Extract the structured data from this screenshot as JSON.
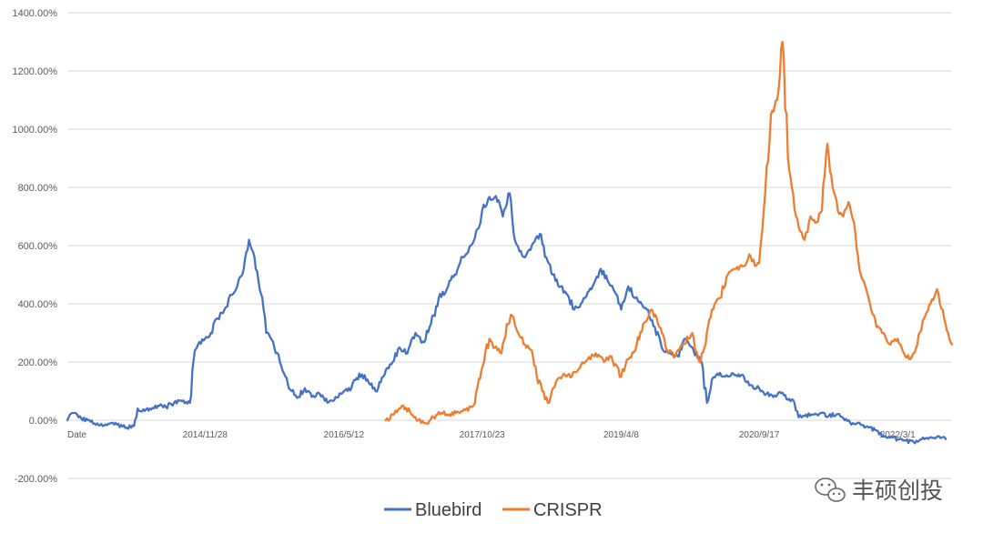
{
  "chart_data": {
    "type": "line",
    "title": "",
    "xlabel": "",
    "ylabel": "",
    "ylim": [
      -200,
      1400
    ],
    "y_ticks": [
      "-200.00%",
      "0.00%",
      "200.00%",
      "400.00%",
      "600.00%",
      "800.00%",
      "1000.00%",
      "1200.00%",
      "1400.00%"
    ],
    "x_tick_labels": [
      "Date",
      "2014/11/28",
      "2016/5/12",
      "2017/10/23",
      "2019/4/8",
      "2020/9/17",
      "2022/3/1"
    ],
    "x_tick_dates": [
      "2013-06-19",
      "2014-11-28",
      "2016-05-12",
      "2017-10-23",
      "2019-04-08",
      "2020-09-17",
      "2022-03-01"
    ],
    "grid": true,
    "legend_position": "bottom",
    "series": [
      {
        "name": "Bluebird",
        "color": "#4472C4",
        "x": [
          "2013-06-19",
          "2013-07-10",
          "2013-08-01",
          "2013-09-15",
          "2013-11-01",
          "2013-12-15",
          "2014-02-01",
          "2014-03-01",
          "2014-03-15",
          "2014-04-01",
          "2014-05-01",
          "2014-06-01",
          "2014-07-01",
          "2014-08-01",
          "2014-09-01",
          "2014-10-01",
          "2014-10-20",
          "2014-11-01",
          "2014-11-28",
          "2014-12-20",
          "2015-01-15",
          "2015-02-10",
          "2015-03-10",
          "2015-04-05",
          "2015-04-25",
          "2015-05-15",
          "2015-06-05",
          "2015-06-20",
          "2015-07-05",
          "2015-07-20",
          "2015-08-15",
          "2015-09-10",
          "2015-10-01",
          "2015-10-25",
          "2015-11-20",
          "2015-12-15",
          "2016-01-10",
          "2016-02-10",
          "2016-03-10",
          "2016-04-10",
          "2016-05-12",
          "2016-06-10",
          "2016-07-10",
          "2016-08-10",
          "2016-09-10",
          "2016-10-10",
          "2016-10-25",
          "2016-11-15",
          "2016-12-10",
          "2017-01-10",
          "2017-02-10",
          "2017-03-10",
          "2017-04-10",
          "2017-05-10",
          "2017-06-10",
          "2017-07-10",
          "2017-08-10",
          "2017-09-10",
          "2017-10-10",
          "2017-10-23",
          "2017-11-15",
          "2017-12-15",
          "2018-01-10",
          "2018-02-05",
          "2018-02-25",
          "2018-03-15",
          "2018-04-05",
          "2018-05-01",
          "2018-06-01",
          "2018-06-25",
          "2018-07-20",
          "2018-08-20",
          "2018-09-15",
          "2018-10-10",
          "2018-11-05",
          "2018-12-01",
          "2018-12-25",
          "2019-01-20",
          "2019-02-15",
          "2019-03-15",
          "2019-04-08",
          "2019-05-05",
          "2019-06-01",
          "2019-06-25",
          "2019-07-20",
          "2019-08-15",
          "2019-09-10",
          "2019-10-10",
          "2019-11-10",
          "2019-12-10",
          "2020-01-10",
          "2020-02-10",
          "2020-03-01",
          "2020-03-20",
          "2020-04-10",
          "2020-05-10",
          "2020-06-10",
          "2020-07-10",
          "2020-08-10",
          "2020-09-17",
          "2020-10-15",
          "2020-11-15",
          "2020-12-15",
          "2021-01-05",
          "2021-01-25",
          "2021-02-15",
          "2021-03-10",
          "2021-04-10",
          "2021-05-10",
          "2021-06-10",
          "2021-07-10",
          "2021-08-10",
          "2021-09-10",
          "2021-10-10",
          "2021-11-10",
          "2021-12-10",
          "2022-01-10",
          "2022-02-10",
          "2022-03-01",
          "2022-04-01",
          "2022-05-01",
          "2022-06-01",
          "2022-07-01",
          "2022-08-01",
          "2022-09-01"
        ],
        "values": [
          0,
          25,
          10,
          -5,
          -20,
          -15,
          -25,
          -20,
          40,
          30,
          40,
          50,
          45,
          60,
          65,
          60,
          240,
          260,
          280,
          300,
          350,
          380,
          430,
          480,
          520,
          620,
          560,
          480,
          420,
          300,
          270,
          200,
          150,
          100,
          80,
          110,
          80,
          90,
          60,
          80,
          100,
          110,
          160,
          140,
          100,
          150,
          180,
          200,
          250,
          230,
          300,
          270,
          330,
          420,
          450,
          500,
          560,
          600,
          660,
          720,
          760,
          770,
          700,
          780,
          620,
          580,
          560,
          600,
          640,
          560,
          500,
          460,
          430,
          380,
          400,
          440,
          470,
          520,
          480,
          440,
          380,
          460,
          420,
          400,
          380,
          320,
          250,
          230,
          220,
          280,
          240,
          200,
          60,
          140,
          160,
          150,
          160,
          155,
          120,
          110,
          90,
          85,
          95,
          70,
          70,
          10,
          15,
          20,
          25,
          15,
          20,
          0,
          -10,
          -15,
          -25,
          -35,
          -55,
          -60,
          -65,
          -70,
          -75,
          -65,
          -60,
          -55,
          -65
        ]
      },
      {
        "name": "CRISPR",
        "color": "#ED7D31",
        "x": [
          "2016-10-19",
          "2016-11-20",
          "2016-12-20",
          "2017-01-20",
          "2017-02-20",
          "2017-03-20",
          "2017-04-20",
          "2017-05-20",
          "2017-06-20",
          "2017-07-20",
          "2017-08-20",
          "2017-09-20",
          "2017-10-20",
          "2017-11-20",
          "2017-12-10",
          "2018-01-05",
          "2018-01-25",
          "2018-02-15",
          "2018-03-10",
          "2018-04-05",
          "2018-05-01",
          "2018-05-20",
          "2018-06-10",
          "2018-07-01",
          "2018-08-01",
          "2018-09-01",
          "2018-10-01",
          "2018-11-01",
          "2018-12-01",
          "2019-01-01",
          "2019-02-01",
          "2019-03-01",
          "2019-04-08",
          "2019-05-05",
          "2019-06-01",
          "2019-07-01",
          "2019-08-01",
          "2019-09-01",
          "2019-10-01",
          "2019-11-01",
          "2019-12-01",
          "2020-01-05",
          "2020-02-01",
          "2020-02-25",
          "2020-03-20",
          "2020-04-20",
          "2020-05-20",
          "2020-06-20",
          "2020-07-20",
          "2020-08-10",
          "2020-09-01",
          "2020-09-17",
          "2020-10-10",
          "2020-11-01",
          "2020-11-25",
          "2020-12-15",
          "2021-01-05",
          "2021-01-20",
          "2021-02-05",
          "2021-02-20",
          "2021-03-10",
          "2021-04-01",
          "2021-04-25",
          "2021-05-15",
          "2021-06-05",
          "2021-06-25",
          "2021-07-15",
          "2021-08-05",
          "2021-08-25",
          "2021-09-15",
          "2021-10-05",
          "2021-10-25",
          "2021-11-15",
          "2021-12-10",
          "2022-01-05",
          "2022-02-01",
          "2022-03-01",
          "2022-03-25",
          "2022-04-20",
          "2022-05-15",
          "2022-06-10",
          "2022-07-05",
          "2022-07-30",
          "2022-08-20",
          "2022-09-10",
          "2022-09-25"
        ],
        "values": [
          0,
          20,
          50,
          30,
          0,
          -10,
          10,
          25,
          20,
          30,
          35,
          50,
          170,
          280,
          250,
          230,
          330,
          360,
          300,
          260,
          240,
          150,
          100,
          60,
          130,
          160,
          150,
          180,
          210,
          230,
          200,
          220,
          150,
          210,
          240,
          330,
          380,
          320,
          240,
          220,
          260,
          300,
          200,
          260,
          380,
          420,
          500,
          520,
          530,
          570,
          530,
          540,
          780,
          1050,
          1100,
          1300,
          900,
          800,
          700,
          650,
          620,
          700,
          680,
          720,
          950,
          800,
          720,
          700,
          750,
          680,
          520,
          470,
          400,
          320,
          300,
          260,
          280,
          230,
          210,
          260,
          350,
          400,
          450,
          380,
          300,
          260
        ]
      }
    ]
  },
  "legend": {
    "bluebird_label": "Bluebird",
    "crispr_label": "CRISPR"
  },
  "watermark": {
    "text": "丰硕创投",
    "icon": "wechat-logo-icon"
  }
}
